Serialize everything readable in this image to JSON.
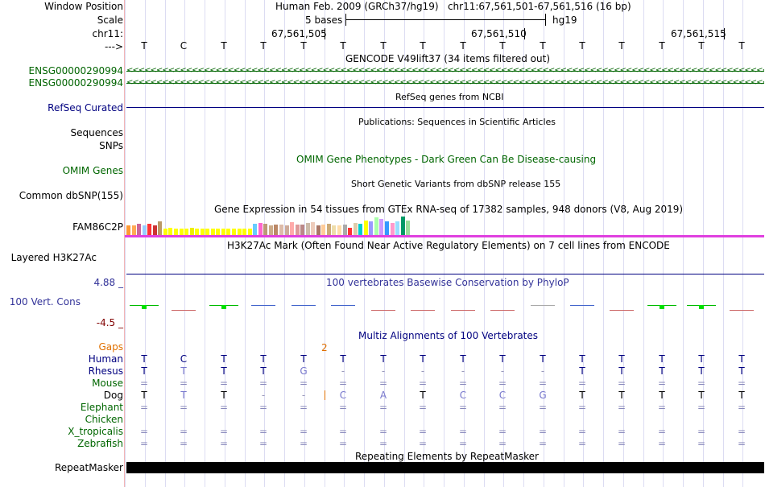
{
  "header": {
    "window_position_label": "Window Position",
    "window_position_value": "Human Feb. 2009 (GRCh37/hg19)   chr11:67,561,501-67,561,516 (16 bp)",
    "scale_label": "Scale",
    "scale_value": "5 bases",
    "scale_assembly": "hg19",
    "chrom_label": "chr11:",
    "coord_ticks": [
      "67,561,505",
      "67,561,510",
      "67,561,515"
    ],
    "strand_label": "--->",
    "bases": [
      "T",
      "C",
      "T",
      "T",
      "T",
      "T",
      "T",
      "T",
      "T",
      "T",
      "T",
      "T",
      "T",
      "T",
      "T",
      "T"
    ]
  },
  "tracks": {
    "gencode": {
      "title": "GENCODE V49lift37 (34 items filtered out)",
      "items": [
        "ENSG00000290994",
        "ENSG00000290994"
      ],
      "arrow_glyphs": "<<<<<<<<<<<<<<<<<<<<<<<<<<<<<<<<<<<<<<<<<<<<<<<<<<<<<<<<<<<<<<<<<<<<<<<<<<<<<<<<<<<<<<<<<<<<<<<<<<<<<<<<<<<<<<<<<<<<<<<<<<<<<<<<<<<<<<<<<<<<<<<<<<<<<<<<<<<<<"
    },
    "refseq": {
      "label": "RefSeq Curated",
      "title": "RefSeq genes from NCBI"
    },
    "publications": {
      "label": "Sequences",
      "title": "Publications: Sequences in Scientific Articles"
    },
    "snps": {
      "label": "SNPs"
    },
    "omim": {
      "label": "OMIM Genes",
      "title": "OMIM Gene Phenotypes - Dark Green Can Be Disease-causing"
    },
    "dbsnp": {
      "label": "Common dbSNP(155)",
      "title": "Short Genetic Variants from dbSNP release 155"
    },
    "gtex": {
      "label": "FAM86C2P",
      "title": "Gene Expression in 54 tissues from GTEx RNA-seq of 17382 samples, 948 donors (V8, Aug 2019)",
      "colors": [
        "#ff9933",
        "#ffaa55",
        "#cc6699",
        "#99ccff",
        "#ff3333",
        "#cc3333",
        "#bb9966",
        "#ffff00",
        "#ffff00",
        "#ffff00",
        "#ffff00",
        "#ffff00",
        "#eeee00",
        "#ffff00",
        "#ffff00",
        "#ffff00",
        "#ffff00",
        "#ffff00",
        "#ffff00",
        "#ffff00",
        "#ffff00",
        "#ffff00",
        "#ffff00",
        "#ffff00",
        "#66ccff",
        "#ff66cc",
        "#bb9977",
        "#ccaa88",
        "#bb8866",
        "#ddbbaa",
        "#ccaa99",
        "#ffaaaa",
        "#dd9999",
        "#bb8888",
        "#ccbbaa",
        "#eeccbb",
        "#aa7766",
        "#ffcc99",
        "#ccaa77",
        "#eeddaa",
        "#ffddaa",
        "#aaaaaa",
        "#ff3333",
        "#ddccaa",
        "#00cccc",
        "#ffff00",
        "#9999ff",
        "#aaffaa",
        "#cc99ff",
        "#3399ff",
        "#ff99cc",
        "#99ddff",
        "#009966",
        "#99dd99"
      ],
      "values": [
        0.5,
        0.5,
        0.6,
        0.5,
        0.6,
        0.5,
        0.75,
        0.35,
        0.4,
        0.35,
        0.35,
        0.35,
        0.4,
        0.35,
        0.35,
        0.35,
        0.35,
        0.35,
        0.35,
        0.35,
        0.35,
        0.35,
        0.35,
        0.35,
        0.6,
        0.65,
        0.6,
        0.5,
        0.55,
        0.55,
        0.5,
        0.7,
        0.55,
        0.55,
        0.65,
        0.7,
        0.5,
        0.55,
        0.6,
        0.5,
        0.5,
        0.55,
        0.4,
        0.65,
        0.6,
        0.8,
        0.75,
        0.95,
        0.85,
        0.75,
        0.65,
        0.75,
        1.0,
        0.8
      ]
    },
    "h3k27ac": {
      "label": "Layered H3K27Ac",
      "title": "H3K27Ac Mark (Often Found Near Active Regulatory Elements) on 7 cell lines from ENCODE"
    },
    "phylop": {
      "label": "100 Vert. Cons",
      "max_label": "4.88 _",
      "min_label": "-4.5 _",
      "title": "100 vertebrates Basewise Conservation by PhyloP",
      "scores": [
        0.8,
        -0.1,
        0.9,
        0.1,
        0.2,
        0.2,
        -0.1,
        -0.1,
        -0.1,
        -0.1,
        0.0,
        0.15,
        -0.1,
        0.8,
        0.6,
        -0.05
      ]
    },
    "multiz": {
      "title": "Multiz Alignments of 100 Vertebrates",
      "gaps_label": "Gaps",
      "gap_count": "2",
      "species": [
        {
          "name": "Human",
          "seq": [
            "T",
            "C",
            "T",
            "T",
            "T",
            "T",
            "T",
            "T",
            "T",
            "T",
            "T",
            "T",
            "T",
            "T",
            "T",
            "T"
          ]
        },
        {
          "name": "Rhesus",
          "seq": [
            "T",
            "T",
            "T",
            "T",
            "G",
            "-",
            "-",
            "-",
            "-",
            "-",
            "-",
            "T",
            "T",
            "T",
            "T",
            "T"
          ]
        },
        {
          "name": "Mouse",
          "seq": [
            "=",
            "=",
            "=",
            "=",
            "=",
            "=",
            "=",
            "=",
            "=",
            "=",
            "=",
            "=",
            "=",
            "=",
            "=",
            "="
          ]
        },
        {
          "name": "Dog",
          "seq": [
            "T",
            "T",
            "T",
            "-",
            "-",
            "C",
            "A",
            "T",
            "C",
            "C",
            "G",
            "T",
            "T",
            "T",
            "T",
            "T"
          ]
        },
        {
          "name": "Elephant",
          "seq": [
            "=",
            "=",
            "=",
            "=",
            "=",
            "=",
            "=",
            "=",
            "=",
            "=",
            "=",
            "=",
            "=",
            "=",
            "=",
            "="
          ]
        },
        {
          "name": "Chicken",
          "seq": [
            "",
            "",
            "",
            "",
            "",
            "",
            "",
            "",
            "",
            "",
            "",
            "",
            "",
            "",
            "",
            ""
          ]
        },
        {
          "name": "X_tropicalis",
          "seq": [
            "=",
            "=",
            "=",
            "=",
            "=",
            "=",
            "=",
            "=",
            "=",
            "=",
            "=",
            "=",
            "=",
            "=",
            "=",
            "="
          ]
        },
        {
          "name": "Zebrafish",
          "seq": [
            "=",
            "=",
            "=",
            "=",
            "=",
            "=",
            "=",
            "=",
            "=",
            "=",
            "=",
            "=",
            "=",
            "=",
            "=",
            "="
          ]
        }
      ]
    },
    "repeatmasker": {
      "label": "RepeatMasker",
      "title": "Repeating Elements by RepeatMasker"
    }
  },
  "colors": {
    "gencode_green": "#006400",
    "navy": "#000080",
    "omim_green": "#006600",
    "phylop_blue": "#333399",
    "phylop_red": "#800000",
    "gaps_orange": "#e07000",
    "h3k_magenta": "#e040e0"
  }
}
